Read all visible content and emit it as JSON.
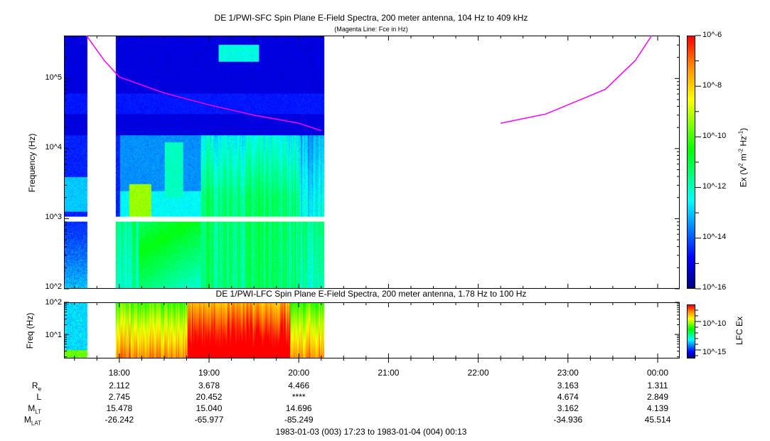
{
  "chart_data": [
    {
      "type": "heatmap",
      "title": "DE 1/PWI-SFC  Spin Plane E-Field Spectra, 200 meter antenna, 104 Hz to 409 kHz",
      "subtitle": "(Magenta Line: Fce in Hz)",
      "ylabel": "Frequency (Hz)",
      "yscale": "log",
      "ylim": [
        100,
        409000
      ],
      "ytick_labels": [
        "10^2",
        "10^3",
        "10^4",
        "10^5"
      ],
      "xlim": [
        "17:23",
        "00:13"
      ],
      "data_coverage": [
        [
          "17:23",
          "17:38"
        ],
        [
          "17:57",
          "20:17"
        ]
      ],
      "frequency_gap_hz": [
        900,
        1080
      ],
      "colorbar": {
        "label": "Ex (V^2 m^-2 Hz^-1)",
        "range_log10": [
          -16,
          -6
        ],
        "tick_labels": [
          "10^-6",
          "10^-8",
          "10^-10",
          "10^-12",
          "10^-14",
          "10^-16"
        ]
      },
      "fce_line": {
        "color": "#ff00ff",
        "segments": [
          [
            [
              "17:38",
              409000
            ],
            [
              "17:50",
              180000
            ],
            [
              "18:00",
              105000
            ],
            [
              "18:30",
              62000
            ],
            [
              "19:00",
              42000
            ],
            [
              "19:30",
              30000
            ],
            [
              "20:00",
              23000
            ],
            [
              "20:15",
              18000
            ]
          ],
          [
            [
              "22:15",
              23000
            ],
            [
              "22:45",
              31000
            ],
            [
              "23:00",
              42000
            ],
            [
              "23:25",
              70000
            ],
            [
              "23:45",
              180000
            ],
            [
              "23:56",
              409000
            ]
          ]
        ]
      }
    },
    {
      "type": "heatmap",
      "title": "DE 1/PWI-LFC  Spin Plane E-Field Spectra, 200 meter antenna, 1.78 Hz to 100 Hz",
      "ylabel": "Freq (Hz)",
      "yscale": "log",
      "ylim": [
        1.78,
        100
      ],
      "ytick_labels": [
        "10^1",
        "10^2"
      ],
      "xlim": [
        "17:23",
        "00:13"
      ],
      "data_coverage": [
        [
          "17:23",
          "17:38"
        ],
        [
          "17:57",
          "20:17"
        ]
      ],
      "colorbar": {
        "label": "LFC Ex",
        "range_log10": [
          -16.5,
          -7
        ],
        "tick_labels": [
          "10^-10",
          "10^-15"
        ]
      }
    }
  ],
  "xaxis": {
    "ticks": [
      "18:00",
      "19:00",
      "20:00",
      "21:00",
      "22:00",
      "23:00",
      "00:00"
    ],
    "rows": [
      {
        "label": "R",
        "sub": "e",
        "values": [
          "2.112",
          "3.678",
          "4.466",
          "",
          "",
          "3.163",
          "1.311"
        ]
      },
      {
        "label": "L",
        "sub": "",
        "values": [
          "2.745",
          "20.452",
          "****",
          "",
          "",
          "4.674",
          "2.849"
        ]
      },
      {
        "label": "M",
        "sub": "LT",
        "values": [
          "15.478",
          "15.040",
          "14.696",
          "",
          "",
          "3.162",
          "4.139"
        ]
      },
      {
        "label": "M",
        "sub": "LAT",
        "values": [
          "-26.242",
          "-65.977",
          "-85.249",
          "",
          "",
          "-34.936",
          "45.514"
        ]
      }
    ],
    "range_label": "1983-01-03 (003) 17:23 to 1983-01-04 (004) 00:13"
  }
}
